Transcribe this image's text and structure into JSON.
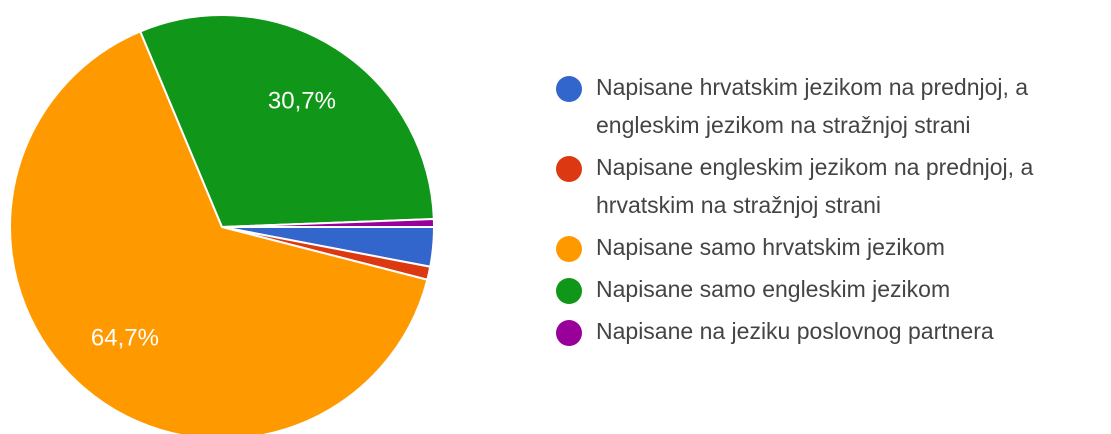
{
  "chart_data": {
    "type": "pie",
    "series": [
      {
        "name": "Napisane hrvatskim jezikom na prednjoj, a engleskim jezikom na stražnjoj strani",
        "color": "#3366cc"
      },
      {
        "name": "Napisane engleskim jezikom na prednjoj, a hrvatskim na stražnjoj strani",
        "color": "#dc3912"
      },
      {
        "name": "Napisane samo hrvatskim jezikom",
        "color": "#ff9900"
      },
      {
        "name": "Napisane samo engleskim jezikom",
        "color": "#109618"
      },
      {
        "name": "Napisane na jeziku poslovnog partnera",
        "color": "#990099"
      }
    ],
    "values": [
      3.0,
      1.0,
      64.7,
      30.7,
      0.6
    ],
    "value_labels": [
      null,
      null,
      "64,7%",
      "30,7%",
      null
    ],
    "legend": "right"
  }
}
